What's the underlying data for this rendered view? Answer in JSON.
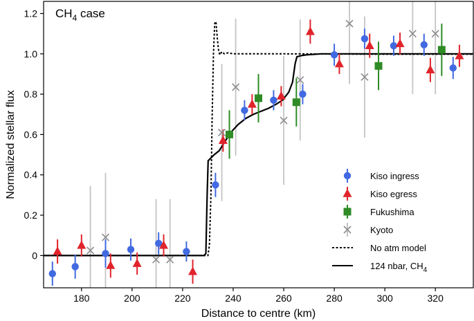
{
  "chart_data": {
    "type": "scatter",
    "title": "CH4 case",
    "title_parts": {
      "main": "CH",
      "sub": "4",
      "tail": " case"
    },
    "xlabel": "Distance to centre (km)",
    "ylabel": "Normalized stellar flux",
    "xlim": [
      165,
      335
    ],
    "ylim": [
      -0.16,
      1.26
    ],
    "xticks": [
      180,
      200,
      220,
      240,
      260,
      280,
      300,
      320
    ],
    "xtick_labels": [
      "180",
      "200",
      "220",
      "240",
      "260",
      "280",
      "300",
      "320"
    ],
    "yticks": [
      0,
      0.2,
      0.4,
      0.6,
      0.8,
      1.0,
      1.2
    ],
    "ytick_labels": [
      "0",
      "0.2",
      "0.4",
      "0.6",
      "0.8",
      "1.0",
      "1.2"
    ],
    "grid": false,
    "legend_position": "bottom-right",
    "series": [
      {
        "name": "Kiso ingress",
        "marker": "circle",
        "color": "#4169e1",
        "points": [
          {
            "x": 168.5,
            "y": -0.09,
            "err": 0.06
          },
          {
            "x": 177.5,
            "y": -0.055,
            "err": 0.06
          },
          {
            "x": 189.5,
            "y": 0.01,
            "err": 0.07
          },
          {
            "x": 199.5,
            "y": 0.03,
            "err": 0.055
          },
          {
            "x": 210.5,
            "y": 0.06,
            "err": 0.055
          },
          {
            "x": 221.5,
            "y": 0.02,
            "err": 0.05
          },
          {
            "x": 233.0,
            "y": 0.35,
            "err": 0.06
          },
          {
            "x": 244.5,
            "y": 0.72,
            "err": 0.05
          },
          {
            "x": 256.0,
            "y": 0.77,
            "err": 0.05
          },
          {
            "x": 267.5,
            "y": 0.8,
            "err": 0.05
          },
          {
            "x": 280.0,
            "y": 0.995,
            "err": 0.055
          },
          {
            "x": 292.0,
            "y": 1.075,
            "err": 0.05
          },
          {
            "x": 303.5,
            "y": 1.04,
            "err": 0.05
          },
          {
            "x": 315.5,
            "y": 1.045,
            "err": 0.055
          },
          {
            "x": 327.0,
            "y": 0.93,
            "err": 0.055
          }
        ]
      },
      {
        "name": "Kiso egress",
        "marker": "triangle",
        "color": "#e0242b",
        "points": [
          {
            "x": 170.5,
            "y": 0.02,
            "err": 0.06
          },
          {
            "x": 180.0,
            "y": 0.05,
            "err": 0.055
          },
          {
            "x": 191.5,
            "y": -0.05,
            "err": 0.06
          },
          {
            "x": 202.0,
            "y": -0.04,
            "err": 0.055
          },
          {
            "x": 212.5,
            "y": 0.05,
            "err": 0.055
          },
          {
            "x": 224.0,
            "y": -0.08,
            "err": 0.06
          },
          {
            "x": 236.0,
            "y": 0.57,
            "err": 0.055
          },
          {
            "x": 247.5,
            "y": 0.75,
            "err": 0.05
          },
          {
            "x": 259.0,
            "y": 0.79,
            "err": 0.05
          },
          {
            "x": 270.5,
            "y": 1.11,
            "err": 0.06
          },
          {
            "x": 282.0,
            "y": 0.95,
            "err": 0.05
          },
          {
            "x": 294.0,
            "y": 1.04,
            "err": 0.06
          },
          {
            "x": 306.0,
            "y": 1.05,
            "err": 0.055
          },
          {
            "x": 318.0,
            "y": 0.92,
            "err": 0.06
          },
          {
            "x": 329.5,
            "y": 0.99,
            "err": 0.055
          }
        ]
      },
      {
        "name": "Fukushima",
        "marker": "square",
        "color": "#2e8b25",
        "points": [
          {
            "x": 238.5,
            "y": 0.6,
            "err": 0.12
          },
          {
            "x": 250.0,
            "y": 0.78,
            "err": 0.12
          },
          {
            "x": 265.0,
            "y": 0.76,
            "err": 0.12
          },
          {
            "x": 297.5,
            "y": 0.94,
            "err": 0.12
          },
          {
            "x": 322.5,
            "y": 1.02,
            "err": 0.13
          }
        ]
      },
      {
        "name": "Kyoto",
        "marker": "x",
        "color": "#8c8c8c",
        "points": [
          {
            "x": 183.5,
            "y": 0.025,
            "err": 0.32
          },
          {
            "x": 189.5,
            "y": 0.09,
            "err": 0.32
          },
          {
            "x": 209.5,
            "y": -0.02,
            "err": 0.3
          },
          {
            "x": 215.0,
            "y": -0.02,
            "err": 0.3
          },
          {
            "x": 235.5,
            "y": 0.61,
            "err": 0.34
          },
          {
            "x": 241.0,
            "y": 0.835,
            "err": 0.34
          },
          {
            "x": 260.0,
            "y": 0.67,
            "err": 0.32
          },
          {
            "x": 266.5,
            "y": 0.87,
            "err": 0.3
          },
          {
            "x": 292.0,
            "y": 0.885,
            "err": 0.3
          },
          {
            "x": 320.0,
            "y": 1.1,
            "err": 0.3
          },
          {
            "x": 311.0,
            "y": 1.1,
            "err": 0.3
          },
          {
            "x": 286.0,
            "y": 1.15,
            "err": 0.3
          }
        ]
      },
      {
        "name": "No atm model",
        "kind": "line",
        "style": "dotted",
        "color": "#000000",
        "points": [
          [
            165,
            0.0
          ],
          [
            230.0,
            0.0
          ],
          [
            230.6,
            0.05
          ],
          [
            231.2,
            0.3
          ],
          [
            231.7,
            0.7
          ],
          [
            232.2,
            1.0
          ],
          [
            232.7,
            1.15
          ],
          [
            233.2,
            1.16
          ],
          [
            233.7,
            1.08
          ],
          [
            234.2,
            1.02
          ],
          [
            234.7,
            0.995
          ],
          [
            235.5,
            1.01
          ],
          [
            236.5,
            1.0
          ],
          [
            238.0,
            1.005
          ],
          [
            240.0,
            1.0
          ],
          [
            260.0,
            1.0
          ],
          [
            300.0,
            0.998
          ],
          [
            335,
            0.998
          ]
        ]
      },
      {
        "name": "124 nbar, CH4",
        "kind": "line",
        "style": "solid",
        "color": "#000000",
        "name_parts": {
          "main": "124 nbar, CH",
          "sub": "4"
        },
        "points": [
          [
            165,
            0.0
          ],
          [
            228.5,
            0.0
          ],
          [
            229.2,
            0.01
          ],
          [
            229.7,
            0.3
          ],
          [
            230.1,
            0.47
          ],
          [
            232.5,
            0.5
          ],
          [
            234.5,
            0.52
          ],
          [
            236.5,
            0.56
          ],
          [
            239.0,
            0.61
          ],
          [
            242.0,
            0.65
          ],
          [
            245.0,
            0.68
          ],
          [
            248.0,
            0.7
          ],
          [
            251.0,
            0.715
          ],
          [
            254.0,
            0.73
          ],
          [
            257.0,
            0.75
          ],
          [
            259.5,
            0.77
          ],
          [
            262.0,
            0.81
          ],
          [
            263.5,
            0.86
          ],
          [
            264.5,
            0.95
          ],
          [
            265.2,
            0.985
          ],
          [
            266.5,
            0.99
          ],
          [
            269.0,
            0.995
          ],
          [
            275.0,
            1.0
          ],
          [
            290.0,
            1.0
          ],
          [
            335,
            1.0
          ]
        ]
      }
    ]
  }
}
